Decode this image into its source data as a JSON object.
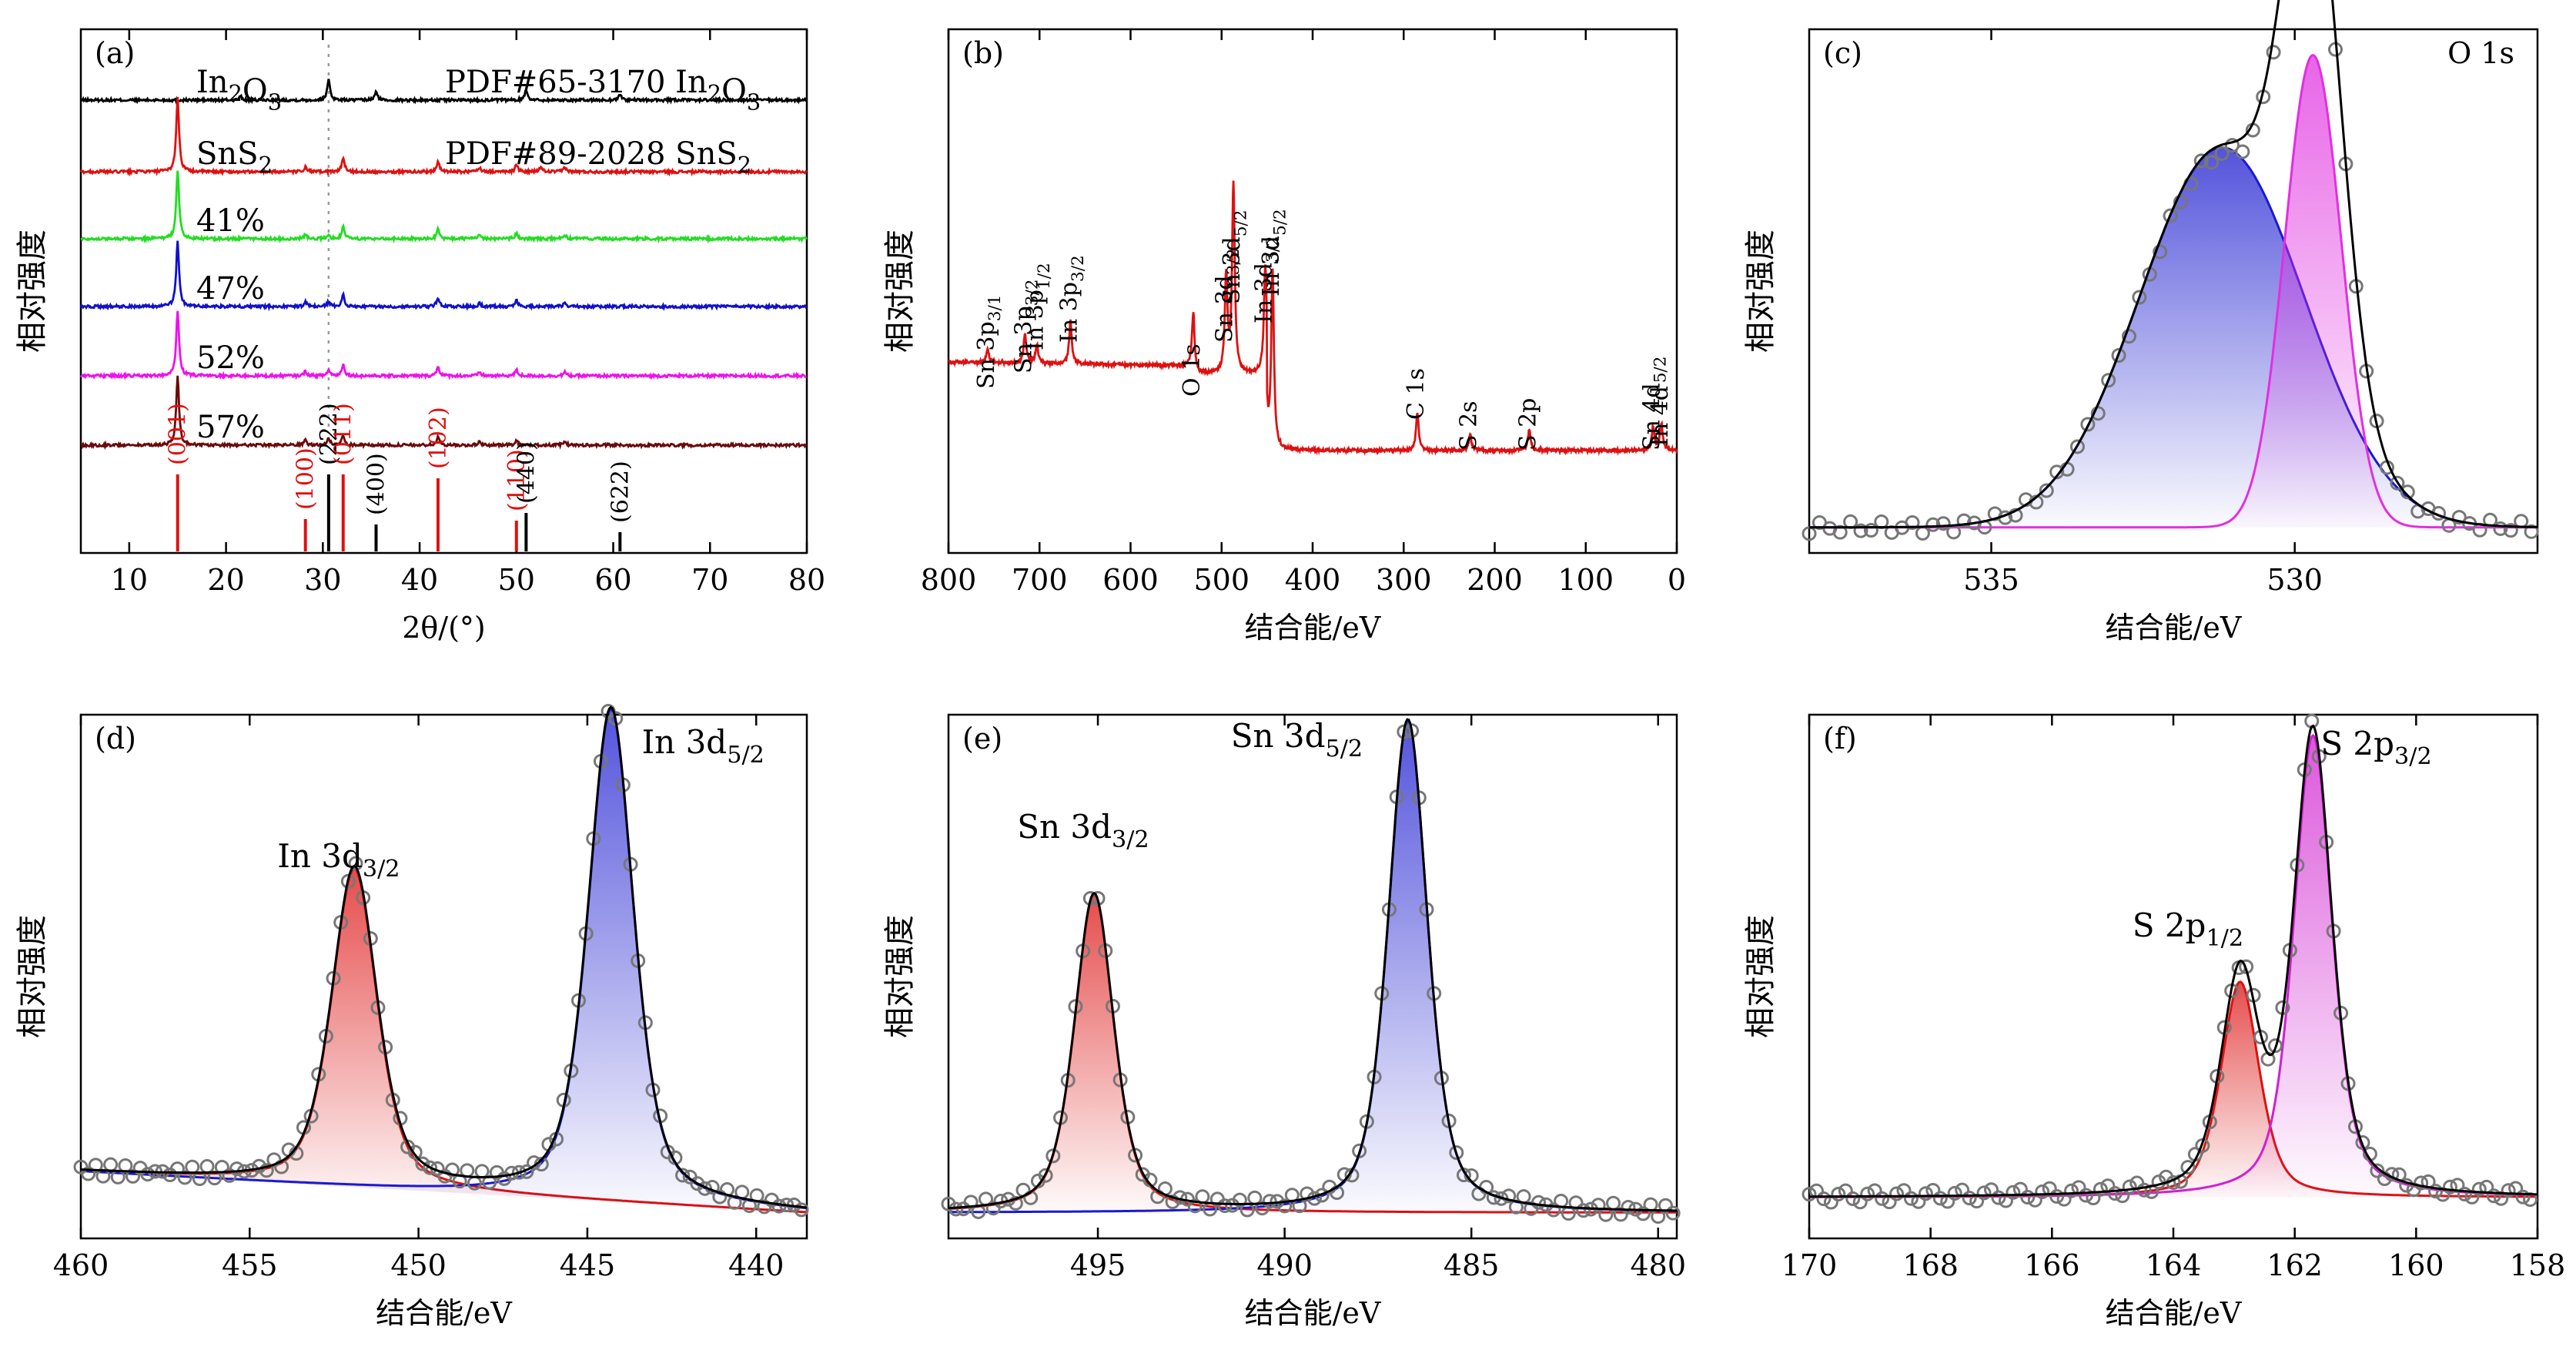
{
  "common": {
    "ylabel": "相对强度",
    "xlabel_be": "结合能/eV"
  },
  "chart_data": [
    {
      "id": "a",
      "panel_label": "(a)",
      "type": "line",
      "xlabel": "2θ/(°)",
      "ylabel": "相对强度",
      "xlim": [
        5,
        80
      ],
      "xticks": [
        10,
        20,
        30,
        40,
        50,
        60,
        70,
        80
      ],
      "dashed_line_x": 30.6,
      "series": [
        {
          "name": "In₂O₃",
          "pdf_label": "PDF#65-3170 In₂O₃",
          "color": "#000000",
          "peaks": [
            [
              21.5,
              0.15
            ],
            [
              30.6,
              0.9
            ],
            [
              35.5,
              0.35
            ],
            [
              51.0,
              0.45
            ],
            [
              60.7,
              0.25
            ]
          ]
        },
        {
          "name": "SnS₂",
          "pdf_label": "PDF#89-2028 SnS₂",
          "color": "#e01010",
          "peaks": [
            [
              15.0,
              3.2
            ],
            [
              28.2,
              0.2
            ],
            [
              32.1,
              0.6
            ],
            [
              41.9,
              0.45
            ],
            [
              46.2,
              0.2
            ],
            [
              50.0,
              0.3
            ],
            [
              52.5,
              0.2
            ],
            [
              55.0,
              0.2
            ]
          ]
        },
        {
          "name": "41%",
          "color": "#22dd22",
          "peaks": [
            [
              15.0,
              3.0
            ],
            [
              28.2,
              0.2
            ],
            [
              30.6,
              0.15
            ],
            [
              32.1,
              0.5
            ],
            [
              41.9,
              0.4
            ],
            [
              46.2,
              0.15
            ],
            [
              50.0,
              0.25
            ],
            [
              55.0,
              0.15
            ]
          ]
        },
        {
          "name": "47%",
          "color": "#1010cc",
          "peaks": [
            [
              15.0,
              2.8
            ],
            [
              28.2,
              0.2
            ],
            [
              30.6,
              0.2
            ],
            [
              32.1,
              0.5
            ],
            [
              41.9,
              0.4
            ],
            [
              46.2,
              0.15
            ],
            [
              50.0,
              0.25
            ],
            [
              55.0,
              0.15
            ]
          ]
        },
        {
          "name": "52%",
          "color": "#ee11ee",
          "peaks": [
            [
              15.0,
              2.8
            ],
            [
              28.2,
              0.2
            ],
            [
              30.6,
              0.25
            ],
            [
              32.1,
              0.5
            ],
            [
              41.9,
              0.4
            ],
            [
              46.2,
              0.15
            ],
            [
              50.0,
              0.25
            ],
            [
              55.0,
              0.15
            ]
          ]
        },
        {
          "name": "57%",
          "color": "#6a0a0a",
          "peaks": [
            [
              15.0,
              3.0
            ],
            [
              28.2,
              0.2
            ],
            [
              30.6,
              0.3
            ],
            [
              32.1,
              0.45
            ],
            [
              41.9,
              0.35
            ],
            [
              46.2,
              0.15
            ],
            [
              50.0,
              0.2
            ],
            [
              55.0,
              0.15
            ]
          ]
        }
      ],
      "reference_lines": [
        {
          "label": "(001)",
          "x": 15.0,
          "h": 1.0,
          "color": "#e01010"
        },
        {
          "label": "(100)",
          "x": 28.2,
          "h": 0.42,
          "color": "#e01010"
        },
        {
          "label": "(222)",
          "x": 30.6,
          "h": 1.0,
          "color": "#000000"
        },
        {
          "label": "(011)",
          "x": 32.1,
          "h": 1.0,
          "color": "#e01010"
        },
        {
          "label": "(400)",
          "x": 35.5,
          "h": 0.35,
          "color": "#000000"
        },
        {
          "label": "(102)",
          "x": 41.9,
          "h": 0.95,
          "color": "#e01010"
        },
        {
          "label": "(110)",
          "x": 50.0,
          "h": 0.4,
          "color": "#e01010"
        },
        {
          "label": "(440)",
          "x": 51.0,
          "h": 0.5,
          "color": "#000000"
        },
        {
          "label": "(622)",
          "x": 60.7,
          "h": 0.25,
          "color": "#000000"
        }
      ]
    },
    {
      "id": "b",
      "panel_label": "(b)",
      "type": "line",
      "xlabel": "结合能/eV",
      "ylabel": "相对强度",
      "xlim": [
        800,
        0
      ],
      "xticks": [
        800,
        700,
        600,
        500,
        400,
        300,
        200,
        100,
        0
      ],
      "color": "#dd1111",
      "peaks": [
        [
          757,
          0.25
        ],
        [
          716,
          0.55
        ],
        [
          703,
          0.35
        ],
        [
          666,
          0.8
        ],
        [
          531,
          1.0
        ],
        [
          495,
          1.8
        ],
        [
          487,
          3.5
        ],
        [
          452,
          1.9
        ],
        [
          444,
          3.3
        ],
        [
          285,
          0.7
        ],
        [
          227,
          0.3
        ],
        [
          162,
          0.4
        ],
        [
          26,
          0.45
        ],
        [
          17,
          0.5
        ]
      ],
      "annotations": [
        {
          "text": "Sn 3p3/1",
          "x": 757
        },
        {
          "text": "Sn 3p3/2",
          "x": 716
        },
        {
          "text": "In 3p1/2",
          "x": 703
        },
        {
          "text": "In 3p3/2",
          "x": 666
        },
        {
          "text": "O 1s",
          "x": 531
        },
        {
          "text": "Sn 3d3/2",
          "x": 495
        },
        {
          "text": "Sn 3d5/2",
          "x": 487
        },
        {
          "text": "In 3d3/2",
          "x": 452
        },
        {
          "text": "In 3d5/2",
          "x": 444
        },
        {
          "text": "C 1s",
          "x": 285
        },
        {
          "text": "S 2s",
          "x": 227
        },
        {
          "text": "S 2p",
          "x": 162
        },
        {
          "text": "Sn 4d5/2",
          "x": 26
        },
        {
          "text": "In 4d",
          "x": 17
        }
      ]
    },
    {
      "id": "c",
      "panel_label": "(c)",
      "title": "O 1s",
      "type": "area",
      "xlabel": "结合能/eV",
      "ylabel": "相对强度",
      "xlim": [
        538,
        526
      ],
      "xticks": [
        535,
        530
      ],
      "baseline": 0.05,
      "components": [
        {
          "center": 531.2,
          "amplitude": 0.74,
          "fwhm": 3.2,
          "color": "#1a1ad0"
        },
        {
          "center": 529.7,
          "amplitude": 0.92,
          "fwhm": 1.1,
          "color": "#e030e0"
        }
      ]
    },
    {
      "id": "d",
      "panel_label": "(d)",
      "type": "area",
      "xlabel": "结合能/eV",
      "ylabel": "相对强度",
      "xlim": [
        460,
        438.5
      ],
      "xticks": [
        460,
        455,
        450,
        445,
        440
      ],
      "baseline_from": [
        460,
        0.13
      ],
      "baseline_to": [
        438.5,
        0.05
      ],
      "peak_labels": [
        "In 3d3/2",
        "In 3d5/2"
      ],
      "components": [
        {
          "label": "In 3d3/2",
          "center": 451.9,
          "amplitude": 0.62,
          "fwhm": 1.6,
          "color": "#dd1111"
        },
        {
          "label": "In 3d5/2",
          "center": 444.3,
          "amplitude": 0.96,
          "fwhm": 1.6,
          "color": "#1a1ad0"
        }
      ]
    },
    {
      "id": "e",
      "panel_label": "(e)",
      "type": "area",
      "xlabel": "结合能/eV",
      "ylabel": "相对强度",
      "xlim": [
        499,
        479.5
      ],
      "xticks": [
        495,
        490,
        485,
        480
      ],
      "baseline": 0.05,
      "peak_labels": [
        "Sn 3d3/2",
        "Sn 3d5/2"
      ],
      "components": [
        {
          "label": "Sn 3d3/2",
          "center": 495.1,
          "amplitude": 0.62,
          "fwhm": 1.25,
          "color": "#dd1111"
        },
        {
          "label": "Sn 3d5/2",
          "center": 486.7,
          "amplitude": 0.96,
          "fwhm": 1.25,
          "color": "#1a1ad0"
        }
      ]
    },
    {
      "id": "f",
      "panel_label": "(f)",
      "type": "area",
      "xlabel": "结合能/eV",
      "ylabel": "相对强度",
      "xlim": [
        170,
        158
      ],
      "xticks": [
        170,
        168,
        166,
        164,
        162,
        160,
        158
      ],
      "baseline": 0.08,
      "peak_labels": [
        "S 2p1/2",
        "S 2p3/2"
      ],
      "components": [
        {
          "label": "S 2p1/2",
          "center": 162.9,
          "amplitude": 0.42,
          "fwhm": 0.75,
          "color": "#dd1111"
        },
        {
          "label": "S 2p3/2",
          "center": 161.7,
          "amplitude": 0.9,
          "fwhm": 0.75,
          "color": "#d020d0"
        }
      ]
    }
  ]
}
